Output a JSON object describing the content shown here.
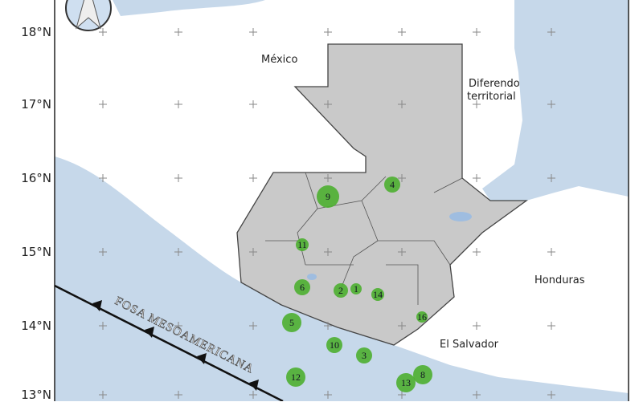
{
  "latitude_labels": [
    "18°N",
    "17°N",
    "16°N",
    "15°N",
    "14°N",
    "13°N"
  ],
  "places": {
    "mexico": "México",
    "diferendo_line1": "Diferendo",
    "diferendo_line2": "territorial",
    "honduras": "Honduras",
    "el_salvador": "El Salvador"
  },
  "trench_label": "FOSA MESOAMERICANA",
  "markers": [
    "9",
    "4",
    "11",
    "6",
    "2",
    "1",
    "14",
    "16",
    "5",
    "10",
    "3",
    "12",
    "13",
    "8"
  ],
  "colors": {
    "ocean": "#c6d8ea",
    "land": "#ffffff",
    "guatemala": "#c9c9c9",
    "marker": "#4caf30",
    "trench": "#111111"
  },
  "icons": [
    "compass-rose-icon"
  ]
}
